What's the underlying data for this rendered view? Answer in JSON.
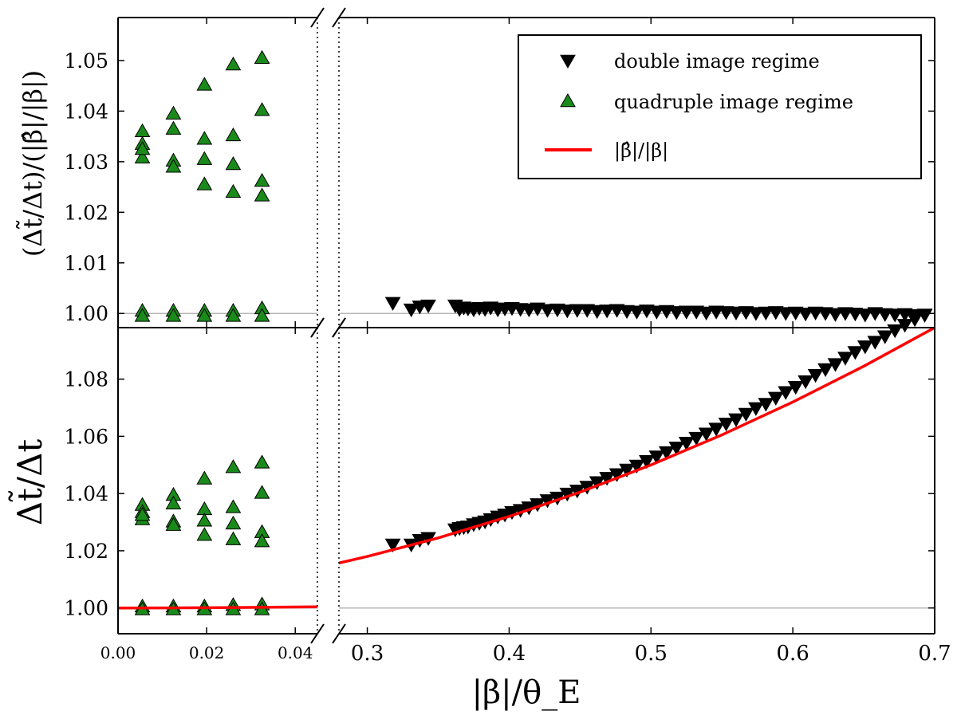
{
  "chart_data": {
    "type": "scatter",
    "layout": "two stacked panels with a broken x-axis, shared x-axis",
    "xlabel": "|β|/θ_E",
    "x_segments": [
      {
        "name": "left",
        "xlim": [
          0.0,
          0.045
        ],
        "ticks": [
          0.0,
          0.02,
          0.04
        ],
        "tick_labels": [
          "0.00",
          "0.02",
          "0.04"
        ]
      },
      {
        "name": "right",
        "xlim": [
          0.28,
          0.7
        ],
        "ticks": [
          0.3,
          0.4,
          0.5,
          0.6,
          0.7
        ],
        "tick_labels": [
          "0.3",
          "0.4",
          "0.5",
          "0.6",
          "0.7"
        ]
      }
    ],
    "legend": {
      "placement": "top-right of upper panel",
      "entries": [
        {
          "label": "double image regime",
          "marker": "triangle-down",
          "color": "#000000"
        },
        {
          "label": "quadruple image regime",
          "marker": "triangle-up",
          "color": "#1a8a1a"
        },
        {
          "label": "|β̂|/|β|",
          "marker": "line",
          "color": "#ff0000"
        }
      ]
    },
    "panels": [
      {
        "name": "top",
        "ylabel": "(Δt̃/Δt)/(|β̂|/|β|)",
        "ylim": [
          0.9972,
          1.0585
        ],
        "ticks": [
          1.0,
          1.01,
          1.02,
          1.03,
          1.04,
          1.05
        ],
        "tick_labels": [
          "1.00",
          "1.01",
          "1.02",
          "1.03",
          "1.04",
          "1.05"
        ],
        "reference_line": 1.0,
        "series": [
          {
            "name": "quadruple image regime",
            "marker": "triangle-up",
            "x": [
              0.0055,
              0.0055,
              0.0055,
              0.0055,
              0.0055,
              0.0055,
              0.0125,
              0.0125,
              0.0125,
              0.0125,
              0.0125,
              0.0125,
              0.0195,
              0.0195,
              0.0195,
              0.0195,
              0.0195,
              0.0195,
              0.026,
              0.026,
              0.026,
              0.026,
              0.026,
              0.026,
              0.0325,
              0.0325,
              0.0325,
              0.0325,
              0.0325,
              0.0325
            ],
            "y": [
              1.036,
              1.0335,
              1.0308,
              1.0325,
              1.0005,
              0.9995,
              1.0395,
              1.0365,
              1.0302,
              1.029,
              1.0005,
              0.9995,
              1.0452,
              1.0345,
              1.0305,
              1.0255,
              1.0005,
              0.9995,
              1.0492,
              1.0352,
              1.0295,
              1.024,
              1.0005,
              0.9995,
              1.0505,
              1.0402,
              1.0262,
              1.0233,
              1.001,
              0.9995
            ]
          },
          {
            "name": "double image regime",
            "marker": "triangle-down",
            "x": [
              0.318,
              0.331,
              0.337,
              0.343,
              0.362,
              0.365,
              0.368,
              0.371,
              0.375,
              0.379,
              0.383,
              0.387,
              0.392,
              0.397,
              0.402,
              0.408,
              0.414,
              0.42,
              0.427,
              0.434,
              0.441,
              0.448,
              0.455,
              0.462,
              0.469,
              0.476,
              0.483,
              0.49,
              0.497,
              0.504,
              0.511,
              0.518,
              0.525,
              0.532,
              0.539,
              0.546,
              0.553,
              0.56,
              0.567,
              0.574,
              0.581,
              0.588,
              0.595,
              0.602,
              0.609,
              0.616,
              0.623,
              0.63,
              0.637,
              0.644,
              0.651,
              0.658,
              0.665,
              0.672,
              0.679,
              0.686,
              0.693
            ],
            "y": [
              1.0021,
              1.0008,
              1.0014,
              1.0016,
              1.0016,
              1.0009,
              1.0012,
              1.001,
              1.0008,
              1.0011,
              1.0009,
              1.0012,
              1.0008,
              1.001,
              1.0011,
              1.0009,
              1.0008,
              1.001,
              1.0007,
              1.0008,
              1.0006,
              1.0007,
              1.0007,
              1.0005,
              1.0006,
              1.0007,
              1.0005,
              1.0004,
              1.0006,
              1.0004,
              1.0005,
              1.0003,
              1.0004,
              1.0004,
              1.0002,
              1.0004,
              1.0003,
              1.0002,
              1.0003,
              1.0001,
              1.0002,
              1.0003,
              1.0001,
              1.0002,
              1.0,
              1.0002,
              1.0001,
              0.9999,
              1.0001,
              1.0,
              0.9998,
              1.0001,
              0.9999,
              0.9998,
              0.9999,
              0.9997,
              0.9998
            ]
          }
        ]
      },
      {
        "name": "bottom",
        "ylabel": "Δt̃/Δt",
        "ylim": [
          0.991,
          1.098
        ],
        "ticks": [
          1.0,
          1.02,
          1.04,
          1.06,
          1.08
        ],
        "tick_labels": [
          "1.00",
          "1.02",
          "1.04",
          "1.06",
          "1.08"
        ],
        "reference_line": 1.0,
        "series": [
          {
            "name": "quadruple image regime",
            "marker": "triangle-up",
            "x": [
              0.0055,
              0.0055,
              0.0055,
              0.0055,
              0.0055,
              0.0055,
              0.0125,
              0.0125,
              0.0125,
              0.0125,
              0.0125,
              0.0125,
              0.0195,
              0.0195,
              0.0195,
              0.0195,
              0.0195,
              0.0195,
              0.026,
              0.026,
              0.026,
              0.026,
              0.026,
              0.026,
              0.0325,
              0.0325,
              0.0325,
              0.0325,
              0.0325,
              0.0325
            ],
            "y": [
              1.036,
              1.0335,
              1.031,
              1.0325,
              1.0005,
              0.9995,
              1.0395,
              1.0365,
              1.0302,
              1.029,
              1.0005,
              0.9995,
              1.0452,
              1.0345,
              1.0305,
              1.0255,
              1.0005,
              0.9995,
              1.0492,
              1.0352,
              1.0295,
              1.024,
              1.001,
              0.9995,
              1.0508,
              1.0402,
              1.0265,
              1.0233,
              1.0012,
              0.9995
            ]
          },
          {
            "name": "double image regime",
            "marker": "triangle-down",
            "x": [
              0.318,
              0.331,
              0.337,
              0.343,
              0.362,
              0.365,
              0.368,
              0.371,
              0.375,
              0.379,
              0.383,
              0.387,
              0.392,
              0.397,
              0.402,
              0.408,
              0.414,
              0.42,
              0.427,
              0.434,
              0.441,
              0.448,
              0.455,
              0.462,
              0.469,
              0.476,
              0.483,
              0.49,
              0.497,
              0.504,
              0.511,
              0.518,
              0.525,
              0.532,
              0.539,
              0.546,
              0.553,
              0.56,
              0.567,
              0.574,
              0.581,
              0.588,
              0.595,
              0.602,
              0.609,
              0.616,
              0.623,
              0.63,
              0.637,
              0.644,
              0.651,
              0.658,
              0.665,
              0.672,
              0.679,
              0.686,
              0.693
            ],
            "y": [
              1.0222,
              1.0222,
              1.0238,
              1.0245,
              1.0275,
              1.028,
              1.0283,
              1.0285,
              1.0293,
              1.0298,
              1.0303,
              1.0311,
              1.032,
              1.0327,
              1.0336,
              1.0343,
              1.0352,
              1.0363,
              1.0377,
              1.0386,
              1.04,
              1.0411,
              1.0424,
              1.044,
              1.0455,
              1.0468,
              1.0484,
              1.0498,
              1.0514,
              1.053,
              1.0545,
              1.0561,
              1.0578,
              1.0595,
              1.061,
              1.0627,
              1.0645,
              1.066,
              1.0679,
              1.0699,
              1.0714,
              1.0735,
              1.0755,
              1.0773,
              1.0793,
              1.0815,
              1.0835,
              1.0853,
              1.0875,
              1.0895,
              1.0915,
              1.0931,
              1.095,
              1.0971,
              1.099,
              1.101,
              1.1025
            ]
          },
          {
            "name": "|β̂|/|β|",
            "marker": "line",
            "model": "1 + 0.2 * x^2",
            "x": [
              0.0,
              0.01,
              0.02,
              0.03,
              0.045,
              0.28,
              0.3,
              0.35,
              0.4,
              0.45,
              0.5,
              0.55,
              0.6,
              0.65,
              0.7
            ],
            "y": [
              1.0,
              1.00002,
              1.00008,
              1.00018,
              1.0004,
              1.0157,
              1.018,
              1.0245,
              1.032,
              1.0405,
              1.05,
              1.0605,
              1.072,
              1.0845,
              1.098
            ]
          }
        ]
      }
    ]
  }
}
